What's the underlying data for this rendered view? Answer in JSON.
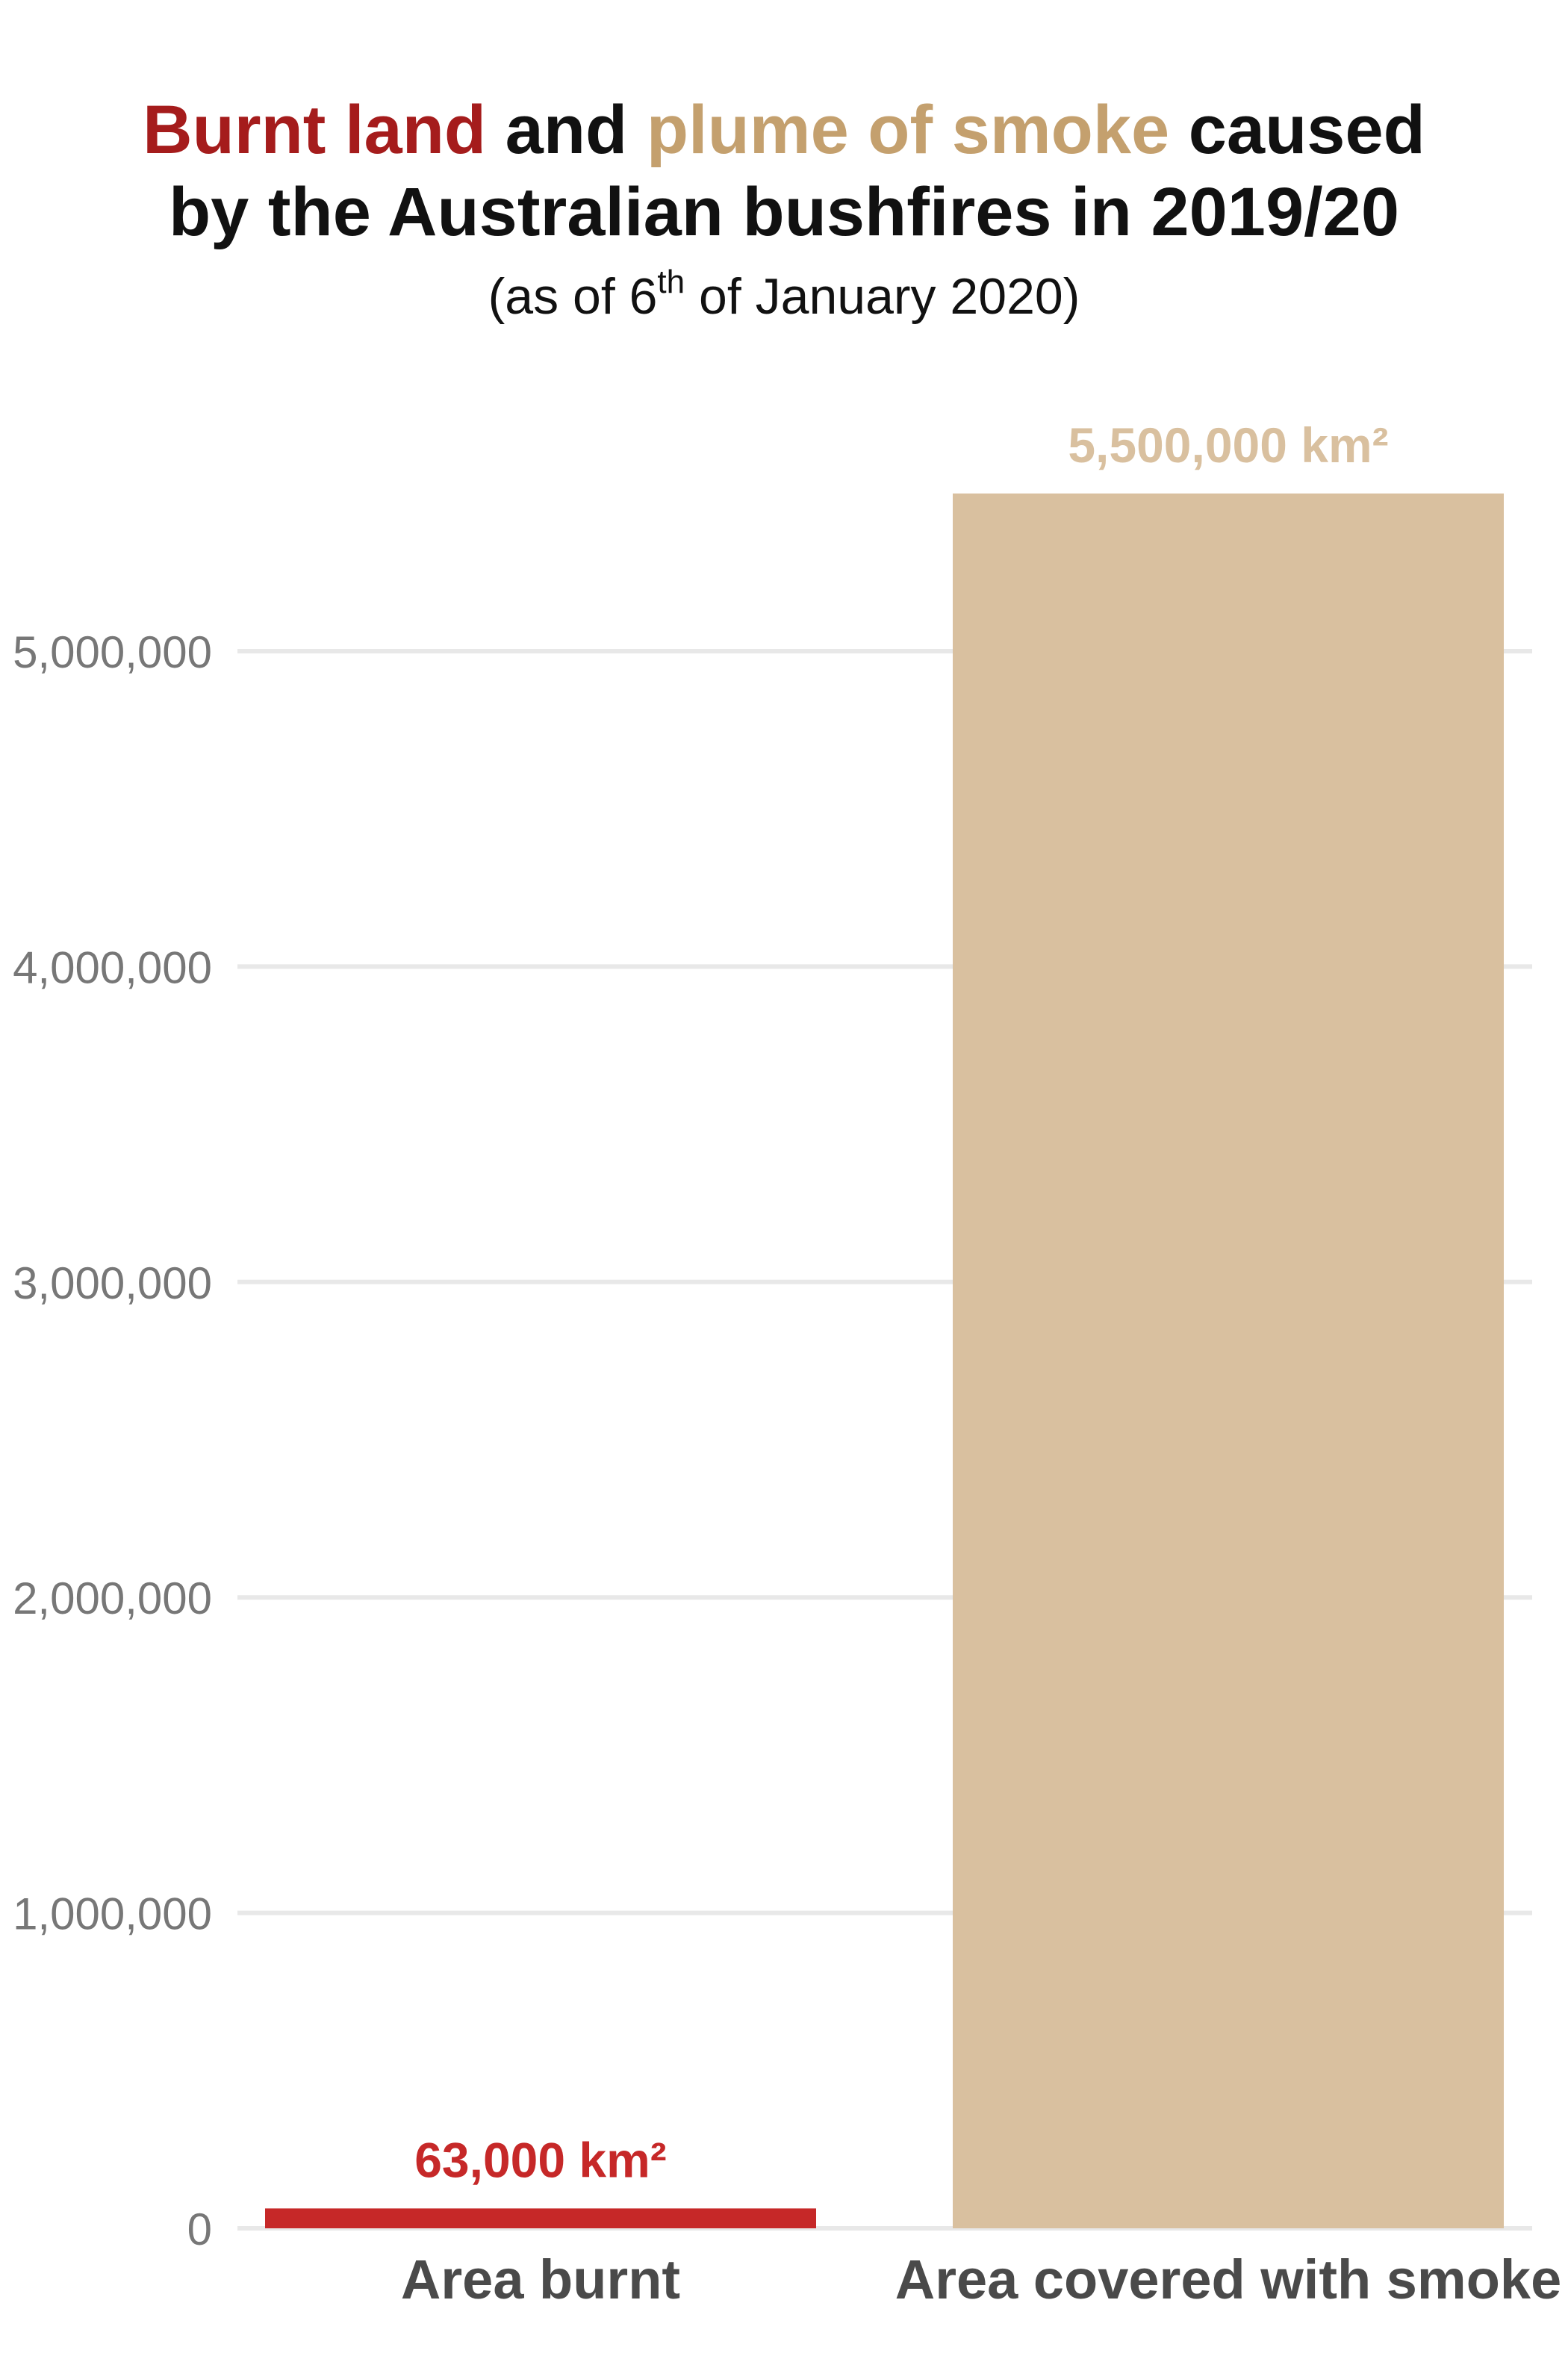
{
  "chart_data": {
    "type": "bar",
    "title": {
      "segments": [
        {
          "text": "Burnt land",
          "color": "#a51c1c"
        },
        {
          "text": " and ",
          "color": "#111111"
        },
        {
          "text": "plume of smoke",
          "color": "#c4a06e"
        },
        {
          "text": " caused",
          "color": "#111111"
        }
      ],
      "line2": "by the Australian bushfires in 2019/20"
    },
    "subtitle": {
      "prefix": "(as of 6",
      "superscript": "th",
      "suffix": " of January 2020)"
    },
    "categories": [
      "Area burnt",
      "Area covered with smoke"
    ],
    "values": [
      63000,
      5500000
    ],
    "data_labels": [
      "63,000 km²",
      "5,500,000 km²"
    ],
    "colors": [
      "#c62828",
      "#d9c09f"
    ],
    "data_label_colors": [
      "#c62828",
      "#d9c09f"
    ],
    "ylim": [
      0,
      5500000
    ],
    "yticks": [
      0,
      1000000,
      2000000,
      3000000,
      4000000,
      5000000
    ],
    "ytick_labels": [
      "0",
      "1,000,000",
      "2,000,000",
      "3,000,000",
      "4,000,000",
      "5,000,000"
    ],
    "grid": true,
    "legend": "none",
    "xlabel": "",
    "ylabel": "",
    "tick_color": "#777777",
    "category_label_color": "#4a4a4a",
    "grid_color": "#e8e8e8"
  }
}
